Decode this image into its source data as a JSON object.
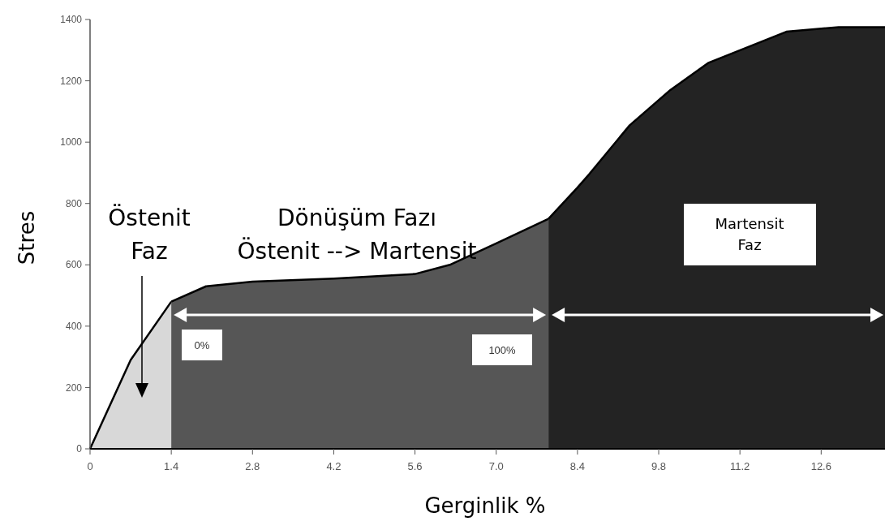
{
  "chart_data": {
    "type": "area",
    "xlabel": "Gerginlik %",
    "ylabel": "Stres",
    "xlim": [
      0,
      13.7
    ],
    "ylim": [
      0,
      1400
    ],
    "xticks": [
      0,
      1.4,
      2.8,
      4.2,
      5.6,
      {
        "value": 7,
        "label": "7.0"
      },
      8.4,
      9.8,
      11.2,
      12.6
    ],
    "yticks": [
      0,
      200,
      400,
      600,
      800,
      1000,
      1200,
      1400
    ],
    "grid": false,
    "marker": "none",
    "line_style": "solid",
    "series": [
      {
        "color": "#d8d8d8",
        "x": [
          0,
          0.7,
          1.4
        ],
        "values": [
          0,
          290,
          480
        ]
      },
      {
        "color": "#565656",
        "x": [
          1.4,
          2.0,
          2.8,
          4.2,
          5.6,
          6.2,
          7.0,
          7.9
        ],
        "values": [
          480,
          530,
          545,
          555,
          570,
          600,
          670,
          750
        ]
      },
      {
        "color": "#232323",
        "x": [
          7.9,
          8.4,
          8.6,
          9.3,
          10.0,
          10.65,
          12.0,
          12.9,
          13.7
        ],
        "values": [
          750,
          852,
          895,
          1055,
          1170,
          1258,
          1360,
          1375,
          1375
        ]
      }
    ],
    "annotations": [
      "Östenit\nFaz",
      "Dönüşüm Fazı\nÖstenit --> Martensit",
      "0%",
      "100%",
      "Martensit\nFaz"
    ]
  }
}
